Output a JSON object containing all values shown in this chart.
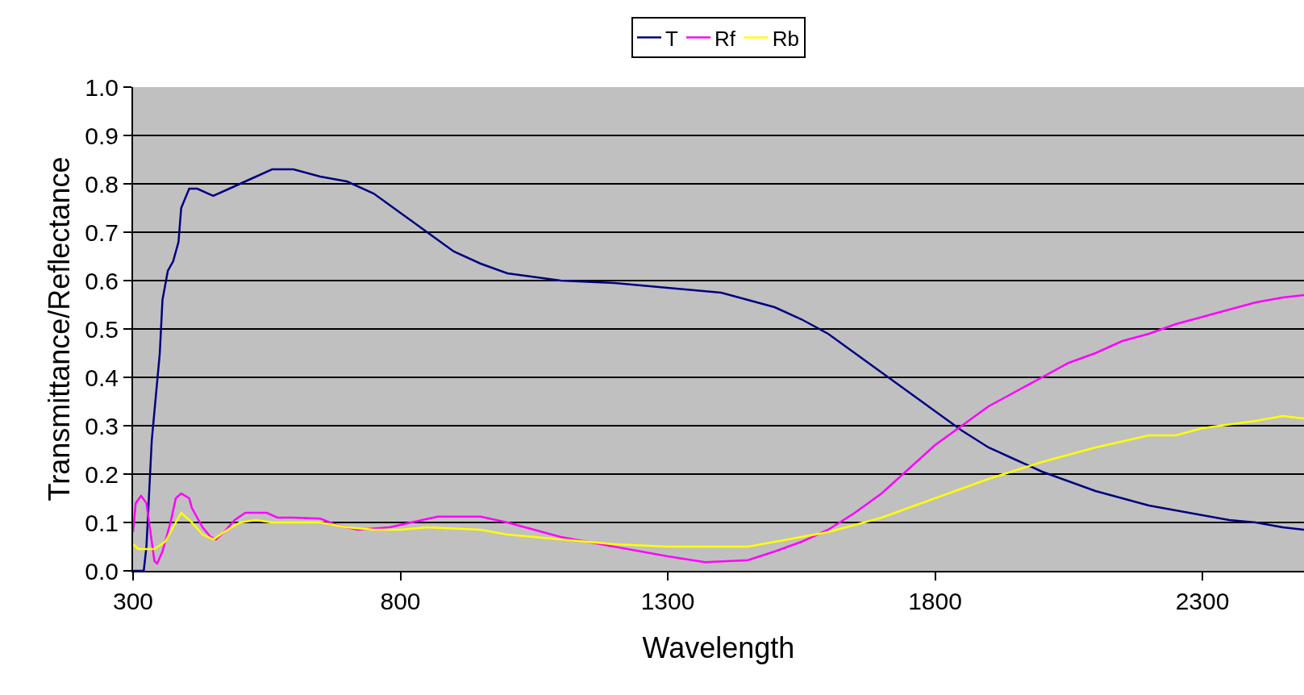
{
  "chart_data": {
    "type": "line",
    "xlabel": "Wavelength",
    "ylabel": "Transmittance/Reflectance",
    "xlim": [
      300,
      2490
    ],
    "xticks": [
      300,
      800,
      1300,
      1800,
      2300
    ],
    "ylim": [
      0,
      1
    ],
    "yticks": [
      {
        "value": 0,
        "label": "0.0"
      },
      {
        "value": 0.1,
        "label": "0.1"
      },
      {
        "value": 0.2,
        "label": "0.2"
      },
      {
        "value": 0.3,
        "label": "0.3"
      },
      {
        "value": 0.4,
        "label": "0.4"
      },
      {
        "value": 0.5,
        "label": "0.5"
      },
      {
        "value": 0.6,
        "label": "0.6"
      },
      {
        "value": 0.7,
        "label": "0.7"
      },
      {
        "value": 0.8,
        "label": "0.8"
      },
      {
        "value": 0.9,
        "label": "0.9"
      },
      {
        "value": 1,
        "label": "1.0"
      }
    ],
    "grid": "y",
    "legend": "top",
    "marker": "none",
    "line_style": "solid",
    "series": [
      {
        "name": "T",
        "color": "#000080",
        "x": [
          300,
          320,
          325,
          335,
          350,
          355,
          365,
          375,
          385,
          390,
          405,
          420,
          450,
          480,
          520,
          560,
          600,
          650,
          700,
          750,
          800,
          850,
          900,
          950,
          1000,
          1100,
          1200,
          1300,
          1400,
          1450,
          1500,
          1550,
          1600,
          1650,
          1700,
          1750,
          1800,
          1850,
          1900,
          1950,
          2000,
          2050,
          2100,
          2150,
          2200,
          2250,
          2300,
          2350,
          2400,
          2450,
          2490
        ],
        "values": [
          0,
          0,
          0.05,
          0.27,
          0.45,
          0.56,
          0.62,
          0.64,
          0.68,
          0.75,
          0.79,
          0.79,
          0.775,
          0.79,
          0.81,
          0.83,
          0.83,
          0.815,
          0.805,
          0.78,
          0.74,
          0.7,
          0.66,
          0.635,
          0.615,
          0.6,
          0.595,
          0.585,
          0.575,
          0.56,
          0.545,
          0.52,
          0.49,
          0.45,
          0.41,
          0.37,
          0.33,
          0.29,
          0.255,
          0.23,
          0.205,
          0.185,
          0.165,
          0.15,
          0.135,
          0.125,
          0.115,
          0.105,
          0.1,
          0.09,
          0.085
        ]
      },
      {
        "name": "Rf",
        "color": "#ff00ff",
        "x": [
          300,
          305,
          315,
          325,
          330,
          340,
          345,
          355,
          370,
          380,
          390,
          405,
          410,
          430,
          445,
          455,
          470,
          490,
          510,
          550,
          570,
          600,
          650,
          680,
          720,
          780,
          820,
          870,
          950,
          1000,
          1050,
          1100,
          1200,
          1300,
          1370,
          1450,
          1500,
          1550,
          1600,
          1650,
          1700,
          1750,
          1800,
          1850,
          1900,
          1950,
          2000,
          2050,
          2100,
          2150,
          2200,
          2250,
          2300,
          2350,
          2400,
          2450,
          2490
        ],
        "values": [
          0.08,
          0.14,
          0.155,
          0.14,
          0.1,
          0.02,
          0.015,
          0.04,
          0.1,
          0.15,
          0.16,
          0.15,
          0.13,
          0.09,
          0.07,
          0.065,
          0.08,
          0.105,
          0.12,
          0.12,
          0.11,
          0.11,
          0.108,
          0.095,
          0.085,
          0.09,
          0.1,
          0.112,
          0.112,
          0.1,
          0.085,
          0.07,
          0.05,
          0.03,
          0.018,
          0.022,
          0.04,
          0.06,
          0.085,
          0.12,
          0.16,
          0.21,
          0.26,
          0.3,
          0.34,
          0.37,
          0.4,
          0.43,
          0.45,
          0.475,
          0.49,
          0.51,
          0.525,
          0.54,
          0.555,
          0.565,
          0.57
        ]
      },
      {
        "name": "Rb",
        "color": "#ffff00",
        "x": [
          300,
          310,
          340,
          360,
          380,
          390,
          410,
          430,
          450,
          470,
          500,
          530,
          560,
          650,
          700,
          750,
          800,
          850,
          950,
          1000,
          1100,
          1200,
          1300,
          1450,
          1500,
          1600,
          1700,
          1800,
          1900,
          2000,
          2100,
          2200,
          2250,
          2300,
          2400,
          2450,
          2490
        ],
        "values": [
          0.055,
          0.045,
          0.045,
          0.06,
          0.1,
          0.12,
          0.1,
          0.075,
          0.065,
          0.08,
          0.1,
          0.105,
          0.1,
          0.1,
          0.09,
          0.085,
          0.085,
          0.09,
          0.085,
          0.075,
          0.065,
          0.055,
          0.05,
          0.05,
          0.06,
          0.08,
          0.11,
          0.15,
          0.19,
          0.225,
          0.255,
          0.28,
          0.28,
          0.295,
          0.31,
          0.32,
          0.315
        ]
      }
    ]
  }
}
